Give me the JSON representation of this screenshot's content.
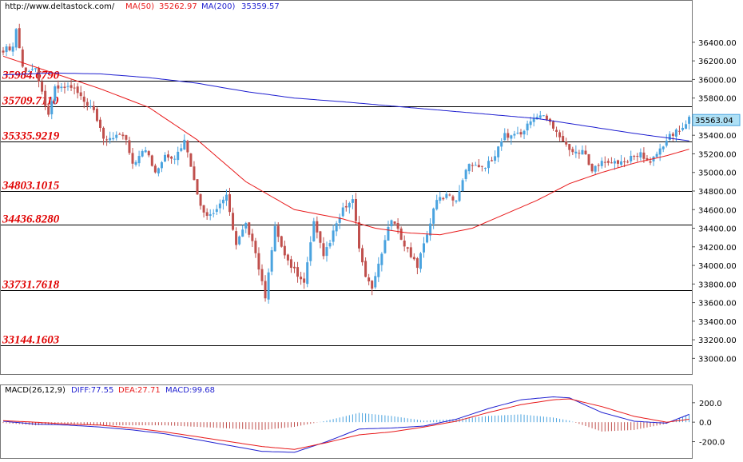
{
  "header": {
    "url": "http://www.deltastock.com/",
    "ma50_label": "MA(50)",
    "ma50_value": "35262.97",
    "ma200_label": "MA(200)",
    "ma200_value": "35359.57"
  },
  "macd_header": {
    "title": "MACD(26,12,9)",
    "diff": "DIFF:77.55",
    "dea": "DEA:27.71",
    "macd": "MACD:99.68"
  },
  "colors": {
    "up": "#4aa3df",
    "down": "#c0504d",
    "ma50": "#e8191a",
    "ma200": "#1f1fd0",
    "level_text": "#e00000",
    "price_box": "#aee0f5"
  },
  "chart_data": {
    "type": "candlestick",
    "price_axis": {
      "ylim": [
        32900,
        36700
      ],
      "ticks": [
        33000,
        33200,
        33400,
        33600,
        33800,
        34000,
        34200,
        34400,
        34600,
        34800,
        35000,
        35200,
        35400,
        35600,
        35800,
        36000,
        36200,
        36400
      ],
      "tick_labels": [
        "33000.00",
        "33200.00",
        "33400.00",
        "33600.00",
        "33800.00",
        "34000.00",
        "34200.00",
        "34400.00",
        "34600.00",
        "34800.00",
        "35000.00",
        "35200.00",
        "35400.00",
        "35600.00",
        "35800.00",
        "36000.00",
        "36200.00",
        "36400.00"
      ]
    },
    "current_price": "35563.04",
    "levels": [
      {
        "value": 35984.679,
        "label": "35984.6790"
      },
      {
        "value": 35709.711,
        "label": "35709.7110"
      },
      {
        "value": 35335.9219,
        "label": "35335.9219"
      },
      {
        "value": 34803.1015,
        "label": "34803.1015"
      },
      {
        "value": 34436.828,
        "label": "34436.8280"
      },
      {
        "value": 33731.7618,
        "label": "33731.7618"
      },
      {
        "value": 33144.1603,
        "label": "33144.1603"
      }
    ],
    "anchors": [
      [
        0,
        36320
      ],
      [
        3,
        36350
      ],
      [
        4,
        36550
      ],
      [
        6,
        36130
      ],
      [
        8,
        36080
      ],
      [
        10,
        36150
      ],
      [
        12,
        35850
      ],
      [
        14,
        35640
      ],
      [
        16,
        35900
      ],
      [
        19,
        35920
      ],
      [
        22,
        35900
      ],
      [
        25,
        35750
      ],
      [
        28,
        35650
      ],
      [
        31,
        35350
      ],
      [
        35,
        35400
      ],
      [
        38,
        35350
      ],
      [
        40,
        35100
      ],
      [
        44,
        35250
      ],
      [
        47,
        35000
      ],
      [
        50,
        35200
      ],
      [
        53,
        35150
      ],
      [
        56,
        35350
      ],
      [
        59,
        34900
      ],
      [
        62,
        34550
      ],
      [
        66,
        34600
      ],
      [
        69,
        34750
      ],
      [
        72,
        34200
      ],
      [
        75,
        34450
      ],
      [
        78,
        34150
      ],
      [
        81,
        33650
      ],
      [
        84,
        34400
      ],
      [
        87,
        34100
      ],
      [
        90,
        33950
      ],
      [
        93,
        33800
      ],
      [
        96,
        34450
      ],
      [
        99,
        34100
      ],
      [
        102,
        34350
      ],
      [
        105,
        34600
      ],
      [
        108,
        34700
      ],
      [
        110,
        34200
      ],
      [
        112,
        33850
      ],
      [
        114,
        33750
      ],
      [
        117,
        34150
      ],
      [
        120,
        34500
      ],
      [
        123,
        34300
      ],
      [
        126,
        34100
      ],
      [
        128,
        34000
      ],
      [
        131,
        34350
      ],
      [
        134,
        34700
      ],
      [
        137,
        34750
      ],
      [
        140,
        34700
      ],
      [
        143,
        35050
      ],
      [
        146,
        35100
      ],
      [
        149,
        35050
      ],
      [
        152,
        35200
      ],
      [
        155,
        35400
      ],
      [
        158,
        35400
      ],
      [
        161,
        35450
      ],
      [
        164,
        35600
      ],
      [
        167,
        35600
      ],
      [
        170,
        35500
      ],
      [
        173,
        35350
      ],
      [
        176,
        35200
      ],
      [
        179,
        35250
      ],
      [
        182,
        35000
      ],
      [
        185,
        35150
      ],
      [
        188,
        35100
      ],
      [
        191,
        35100
      ],
      [
        194,
        35150
      ],
      [
        197,
        35200
      ],
      [
        200,
        35100
      ],
      [
        203,
        35250
      ],
      [
        206,
        35400
      ],
      [
        209,
        35450
      ],
      [
        212,
        35580
      ]
    ],
    "ma50": [
      [
        0,
        36250
      ],
      [
        30,
        35900
      ],
      [
        45,
        35700
      ],
      [
        60,
        35350
      ],
      [
        75,
        34900
      ],
      [
        90,
        34600
      ],
      [
        105,
        34500
      ],
      [
        115,
        34400
      ],
      [
        125,
        34350
      ],
      [
        135,
        34330
      ],
      [
        145,
        34400
      ],
      [
        155,
        34550
      ],
      [
        165,
        34700
      ],
      [
        175,
        34880
      ],
      [
        185,
        35000
      ],
      [
        195,
        35100
      ],
      [
        205,
        35180
      ],
      [
        212,
        35250
      ]
    ],
    "ma200": [
      [
        0,
        36050
      ],
      [
        15,
        36070
      ],
      [
        30,
        36060
      ],
      [
        45,
        36020
      ],
      [
        60,
        35960
      ],
      [
        75,
        35870
      ],
      [
        90,
        35800
      ],
      [
        105,
        35760
      ],
      [
        125,
        35700
      ],
      [
        145,
        35640
      ],
      [
        165,
        35580
      ],
      [
        180,
        35500
      ],
      [
        195,
        35420
      ],
      [
        212,
        35340
      ]
    ],
    "macd": {
      "ylim": [
        -360,
        330
      ],
      "ticks": [
        200,
        0,
        -200
      ],
      "tick_labels": [
        "200.0",
        "0.0",
        "-200.0"
      ],
      "diff": [
        [
          0,
          10
        ],
        [
          10,
          -20
        ],
        [
          20,
          -30
        ],
        [
          30,
          -50
        ],
        [
          40,
          -80
        ],
        [
          50,
          -120
        ],
        [
          60,
          -180
        ],
        [
          70,
          -240
        ],
        [
          80,
          -300
        ],
        [
          90,
          -310
        ],
        [
          100,
          -200
        ],
        [
          110,
          -70
        ],
        [
          120,
          -60
        ],
        [
          130,
          -40
        ],
        [
          140,
          30
        ],
        [
          150,
          140
        ],
        [
          160,
          230
        ],
        [
          170,
          260
        ],
        [
          175,
          250
        ],
        [
          185,
          100
        ],
        [
          195,
          10
        ],
        [
          205,
          -10
        ],
        [
          212,
          80
        ]
      ],
      "dea": [
        [
          0,
          15
        ],
        [
          10,
          0
        ],
        [
          20,
          -20
        ],
        [
          30,
          -30
        ],
        [
          40,
          -60
        ],
        [
          50,
          -100
        ],
        [
          60,
          -150
        ],
        [
          70,
          -200
        ],
        [
          80,
          -250
        ],
        [
          90,
          -280
        ],
        [
          100,
          -210
        ],
        [
          110,
          -130
        ],
        [
          120,
          -100
        ],
        [
          130,
          -50
        ],
        [
          140,
          10
        ],
        [
          150,
          100
        ],
        [
          160,
          180
        ],
        [
          170,
          230
        ],
        [
          175,
          240
        ],
        [
          185,
          160
        ],
        [
          195,
          60
        ],
        [
          205,
          0
        ],
        [
          212,
          30
        ]
      ]
    }
  }
}
